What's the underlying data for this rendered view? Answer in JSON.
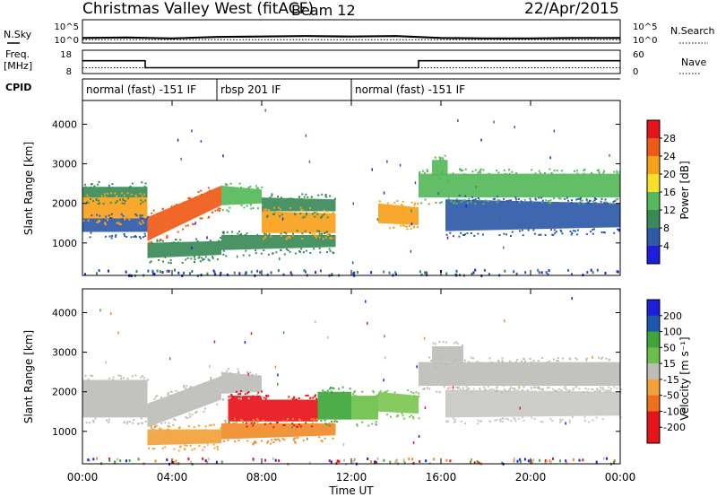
{
  "header": {
    "title": "Christmas Valley West (fitACF)",
    "beam": "Beam 12",
    "date": "22/Apr/2015"
  },
  "noise_panel": {
    "left_label": "N.Sky",
    "right_label": "N.Search",
    "ytick_top": "10^5",
    "ytick_bottom": "10^0"
  },
  "freq_panel": {
    "left_label_line1": "Freq.",
    "left_label_line2": "[MHz]",
    "right_label": "Nave",
    "left_ticks": [
      "18",
      "8"
    ],
    "right_ticks": [
      "60",
      "0"
    ]
  },
  "cpid": {
    "label": "CPID",
    "segments": [
      {
        "start_h": 0,
        "end_h": 6,
        "text": "normal (fast) -151 IF"
      },
      {
        "start_h": 6,
        "end_h": 12,
        "text": "rbsp 201 IF"
      },
      {
        "start_h": 12,
        "end_h": 24,
        "text": "normal (fast) -151 IF"
      }
    ]
  },
  "time_axis": {
    "label": "Time UT",
    "ticks": [
      "00:00",
      "04:00",
      "08:00",
      "12:00",
      "16:00",
      "20:00",
      "00:00"
    ],
    "range_hours": [
      0,
      24
    ]
  },
  "power_panel": {
    "ylabel": "Slant Range [km]",
    "yticks": [
      "4000",
      "3000",
      "2000",
      "1000"
    ],
    "colorbar_label": "Power [dB]",
    "colorbar_ticks": [
      "28",
      "24",
      "20",
      "16",
      "12",
      "8",
      "4"
    ]
  },
  "velocity_panel": {
    "ylabel": "Slant Range [km]",
    "yticks": [
      "4000",
      "3000",
      "2000",
      "1000"
    ],
    "colorbar_label": "Velocity [m s⁻¹]",
    "colorbar_ticks": [
      "200",
      "100",
      "50",
      "15",
      "-15",
      "-50",
      "-100",
      "-200"
    ]
  },
  "chart_data": [
    {
      "type": "line",
      "name": "noise",
      "x_unit": "hours UT",
      "ylim_log10": [
        0,
        5
      ],
      "x": [
        0,
        2,
        4,
        6,
        8,
        10,
        12,
        14,
        16,
        18,
        20,
        22,
        24
      ],
      "sky_log10": [
        1.1,
        1.2,
        1.0,
        1.3,
        1.4,
        1.5,
        1.4,
        1.5,
        1.1,
        1.0,
        1.0,
        1.1,
        1.1
      ]
    },
    {
      "type": "line",
      "name": "frequency",
      "x_unit": "hours UT",
      "ylim": [
        8,
        18
      ],
      "nave_ylim": [
        0,
        60
      ],
      "freq_steps": [
        {
          "start_h": 0,
          "end_h": 2.8,
          "value": 13.5
        },
        {
          "start_h": 2.8,
          "end_h": 15.0,
          "value": 10.5
        },
        {
          "start_h": 15.0,
          "end_h": 24,
          "value": 13.5
        }
      ],
      "nave_level": 15
    },
    {
      "type": "heatmap",
      "name": "power",
      "x_unit": "hours UT",
      "y_unit": "km",
      "xlim": [
        0,
        24
      ],
      "ylim": [
        180,
        4600
      ],
      "color_scale": {
        "min": 0,
        "max": 30,
        "colors": [
          "#1d1ddb",
          "#2f5aa8",
          "#3a8a58",
          "#55b85a",
          "#f7e02a",
          "#f7a11a",
          "#ef5a17",
          "#e6141a"
        ]
      },
      "bands": [
        {
          "x0": 0.0,
          "x1": 2.9,
          "y0": 1620,
          "y1": 2150,
          "y0e": 1620,
          "y1e": 2150,
          "val": 22
        },
        {
          "x0": 0.0,
          "x1": 2.9,
          "y0": 2150,
          "y1": 2420,
          "y0e": 2150,
          "y1e": 2420,
          "val": 9
        },
        {
          "x0": 0.0,
          "x1": 2.9,
          "y0": 1280,
          "y1": 1620,
          "y0e": 1280,
          "y1e": 1620,
          "val": 6
        },
        {
          "x0": 2.9,
          "x1": 6.2,
          "y0": 1050,
          "y1": 1650,
          "y0e": 1950,
          "y1e": 2450,
          "val": 25
        },
        {
          "x0": 2.9,
          "x1": 6.2,
          "y0": 620,
          "y1": 1000,
          "y0e": 700,
          "y1e": 1050,
          "val": 11
        },
        {
          "x0": 6.2,
          "x1": 8.0,
          "y0": 1950,
          "y1": 2450,
          "y0e": 2000,
          "y1e": 2350,
          "val": 14
        },
        {
          "x0": 6.2,
          "x1": 11.3,
          "y0": 820,
          "y1": 1200,
          "y0e": 900,
          "y1e": 1200,
          "val": 10
        },
        {
          "x0": 8.0,
          "x1": 11.3,
          "y0": 1250,
          "y1": 1800,
          "y0e": 1250,
          "y1e": 1750,
          "val": 21
        },
        {
          "x0": 8.0,
          "x1": 11.3,
          "y0": 1800,
          "y1": 2150,
          "y0e": 1800,
          "y1e": 2100,
          "val": 9
        },
        {
          "x0": 13.2,
          "x1": 15.0,
          "y0": 1500,
          "y1": 2000,
          "y0e": 1450,
          "y1e": 1900,
          "val": 19
        },
        {
          "x0": 15.0,
          "x1": 24.0,
          "y0": 2150,
          "y1": 2750,
          "y0e": 2150,
          "y1e": 2750,
          "val": 14
        },
        {
          "x0": 16.2,
          "x1": 24.0,
          "y0": 1300,
          "y1": 2100,
          "y0e": 1400,
          "y1e": 2000,
          "val": 7
        },
        {
          "x0": 15.6,
          "x1": 16.3,
          "y0": 2700,
          "y1": 3100,
          "y0e": 2700,
          "y1e": 3100,
          "val": 12
        }
      ]
    },
    {
      "type": "heatmap",
      "name": "velocity",
      "x_unit": "hours UT",
      "y_unit": "km",
      "xlim": [
        0,
        24
      ],
      "ylim": [
        180,
        4600
      ],
      "bands": [
        {
          "x0": 0.0,
          "x1": 2.9,
          "y0": 1350,
          "y1": 2300,
          "y0e": 1350,
          "y1e": 2300,
          "color": "#bdbdb8"
        },
        {
          "x0": 2.9,
          "x1": 6.2,
          "y0": 1100,
          "y1": 1700,
          "y0e": 1800,
          "y1e": 2400,
          "color": "#bdbdb8"
        },
        {
          "x0": 2.9,
          "x1": 6.2,
          "y0": 650,
          "y1": 1050,
          "y0e": 700,
          "y1e": 1050,
          "color": "#f2a23a"
        },
        {
          "x0": 6.2,
          "x1": 11.3,
          "y0": 800,
          "y1": 1200,
          "y0e": 900,
          "y1e": 1200,
          "color": "#f08c2a"
        },
        {
          "x0": 6.2,
          "x1": 8.0,
          "y0": 1950,
          "y1": 2500,
          "y0e": 2000,
          "y1e": 2400,
          "color": "#bdbdb8"
        },
        {
          "x0": 6.5,
          "x1": 8.0,
          "y0": 1250,
          "y1": 1900,
          "y0e": 1250,
          "y1e": 1900,
          "color": "#e6141a"
        },
        {
          "x0": 8.0,
          "x1": 10.5,
          "y0": 1250,
          "y1": 1800,
          "y0e": 1250,
          "y1e": 1800,
          "color": "#e6141a"
        },
        {
          "x0": 10.5,
          "x1": 12.0,
          "y0": 1300,
          "y1": 2000,
          "y0e": 1300,
          "y1e": 2000,
          "color": "#3ea63a"
        },
        {
          "x0": 12.0,
          "x1": 13.2,
          "y0": 1300,
          "y1": 1900,
          "y0e": 1300,
          "y1e": 1900,
          "color": "#6cc04a"
        },
        {
          "x0": 13.2,
          "x1": 15.0,
          "y0": 1500,
          "y1": 2000,
          "y0e": 1450,
          "y1e": 1900,
          "color": "#7cc552"
        },
        {
          "x0": 15.0,
          "x1": 24.0,
          "y0": 2150,
          "y1": 2750,
          "y0e": 2150,
          "y1e": 2750,
          "color": "#bdbdb8"
        },
        {
          "x0": 15.6,
          "x1": 17.0,
          "y0": 2750,
          "y1": 3150,
          "y0e": 2750,
          "y1e": 3150,
          "color": "#bdbdb8"
        },
        {
          "x0": 16.2,
          "x1": 24.0,
          "y0": 1350,
          "y1": 2050,
          "y0e": 1400,
          "y1e": 2000,
          "color": "#c9c9c4"
        }
      ]
    }
  ]
}
